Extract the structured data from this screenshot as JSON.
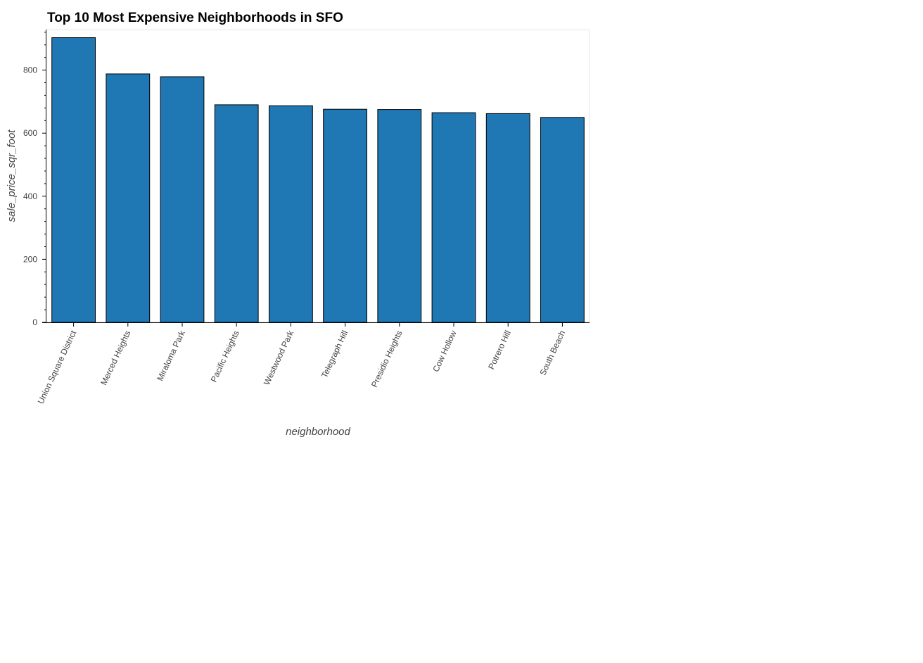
{
  "chart_data": {
    "type": "bar",
    "title": "Top 10 Most Expensive Neighborhoods in SFO",
    "xlabel": "neighborhood",
    "ylabel": "sale_price_sqr_foot",
    "categories": [
      "Union Square District",
      "Merced Heights",
      "Miraloma Park",
      "Pacific Heights",
      "Westwood Park",
      "Telegraph Hill",
      "Presidio Heights",
      "Cow Hollow",
      "Potrero Hill",
      "South Beach"
    ],
    "values": [
      903,
      788,
      779,
      690,
      687,
      676,
      675,
      665,
      662,
      650
    ],
    "ylim": [
      0,
      925
    ],
    "yticks": [
      0,
      200,
      400,
      600,
      800
    ],
    "grid": false,
    "bar_color": "#1f77b4",
    "bar_edge_color": "#000000"
  }
}
